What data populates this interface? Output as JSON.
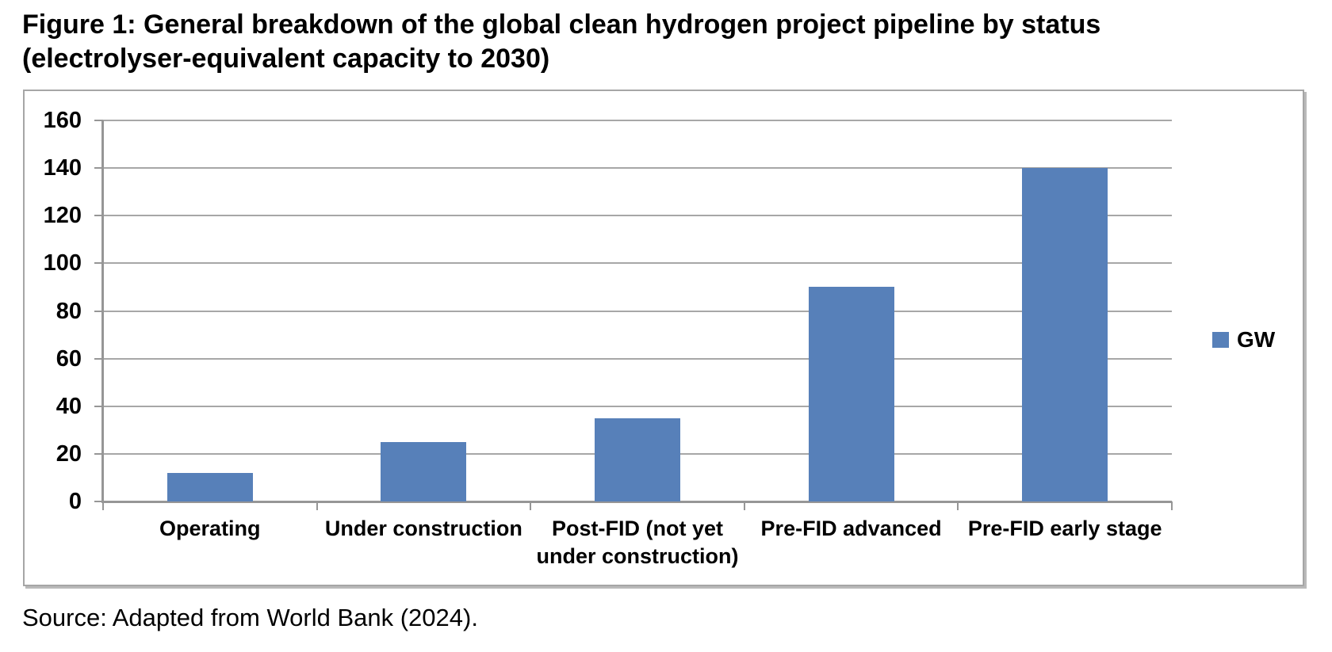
{
  "page": {
    "title": "Figure 1: General breakdown of the global clean hydrogen project pipeline by status\n(electrolyser-equivalent capacity to 2030)",
    "source_note": "Source: Adapted from World Bank (2024)."
  },
  "colors": {
    "bar_fill": "#5780B9",
    "gridline": "#A7A7A7",
    "axis_line": "#969696",
    "frame_border": "#A6A6A6",
    "text": "#000000",
    "background": "#FFFFFF"
  },
  "chart_data": {
    "type": "bar",
    "categories": [
      "Operating",
      "Under construction",
      "Post-FID (not yet under construction)",
      "Pre-FID advanced",
      "Pre-FID early stage"
    ],
    "series": [
      {
        "name": "GW",
        "values": [
          12,
          25,
          35,
          90,
          140
        ]
      }
    ],
    "title": "",
    "xlabel": "",
    "ylabel": "",
    "ylim": [
      0,
      160
    ],
    "ytick_step": 20,
    "ytick_labels": [
      "0",
      "20",
      "40",
      "60",
      "80",
      "100",
      "120",
      "140",
      "160"
    ],
    "grid": true,
    "legend_position": "right-middle"
  }
}
